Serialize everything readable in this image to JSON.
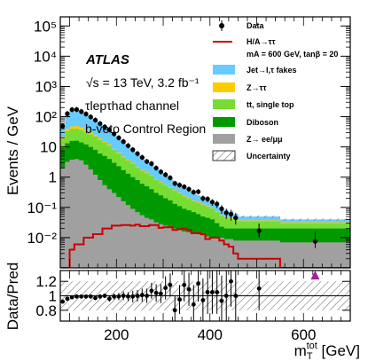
{
  "chart_data": [
    {
      "type": "area",
      "stacked": true,
      "log_y": true,
      "atlas_label": "ATLAS",
      "energy_label": "√s = 13 TeV, 3.2 fb⁻¹",
      "channel_label": "τlepτhad channel",
      "region_label": "b-veto Control Region",
      "ylabel": "Events / GeV",
      "xlim": [
        80,
        700
      ],
      "ylim": [
        0.001,
        200000
      ],
      "y_tick_labels": [
        "10⁻²",
        "10⁻¹",
        "1",
        "10",
        "10²",
        "10³",
        "10⁴",
        "10⁵"
      ],
      "y_tick_values": [
        0.01,
        0.1,
        1,
        10,
        100,
        1000,
        10000,
        100000
      ],
      "bin_edges": [
        80,
        90,
        100,
        110,
        120,
        130,
        140,
        150,
        160,
        170,
        180,
        190,
        200,
        210,
        220,
        230,
        240,
        250,
        260,
        270,
        280,
        290,
        300,
        310,
        320,
        330,
        340,
        350,
        360,
        370,
        380,
        390,
        400,
        410,
        420,
        430,
        440,
        450,
        460,
        550,
        700
      ],
      "series": [
        {
          "name": "Z→ee/μμ",
          "color": "#a0a0a0",
          "values": [
            2.0,
            3.2,
            3.8,
            4.0,
            3.6,
            2.6,
            1.8,
            1.2,
            0.8,
            0.55,
            0.4,
            0.3,
            0.22,
            0.16,
            0.12,
            0.09,
            0.07,
            0.055,
            0.045,
            0.04,
            0.032,
            0.028,
            0.025,
            0.022,
            0.02,
            0.018,
            0.016,
            0.015,
            0.014,
            0.013,
            0.012,
            0.011,
            0.01,
            0.01,
            0.01,
            0.009,
            0.009,
            0.008,
            0.008,
            0.007
          ]
        },
        {
          "name": "Diboson",
          "color": "#009900",
          "values": [
            6.0,
            10.0,
            12.0,
            12.0,
            10.4,
            9.4,
            8.2,
            6.8,
            5.2,
            4.45,
            3.6,
            2.7,
            2.08,
            1.54,
            1.18,
            0.91,
            0.73,
            0.545,
            0.455,
            0.36,
            0.268,
            0.222,
            0.175,
            0.148,
            0.11,
            0.092,
            0.074,
            0.065,
            0.056,
            0.047,
            0.038,
            0.034,
            0.03,
            0.02,
            0.013,
            0.011,
            0.011,
            0.012,
            0.012,
            0.013
          ]
        },
        {
          "name": "tt, single top",
          "color": "#77dd33",
          "values": [
            10.0,
            20.0,
            24.0,
            24.0,
            22.0,
            18.0,
            16.0,
            14.0,
            11.0,
            9.0,
            7.0,
            5.0,
            3.7,
            2.8,
            2.2,
            1.8,
            1.3,
            1.0,
            0.85,
            0.7,
            0.5,
            0.4,
            0.33,
            0.27,
            0.22,
            0.18,
            0.14,
            0.11,
            0.09,
            0.08,
            0.07,
            0.06,
            0.05,
            0.04,
            0.03,
            0.025,
            0.02,
            0.018,
            0.015,
            0.01
          ]
        },
        {
          "name": "Z→ττ",
          "color": "#ffcc00",
          "values": [
            3.0,
            6.0,
            8.0,
            9.0,
            8.0,
            6.0,
            4.0,
            3.0,
            2.0,
            1.4,
            1.0,
            0.7,
            0.5,
            0.35,
            0.25,
            0.18,
            0.13,
            0.1,
            0.08,
            0.06,
            0.045,
            0.035,
            0.028,
            0.022,
            0.018,
            0.015,
            0.012,
            0.01,
            0.008,
            0.007,
            0.006,
            0.005,
            0.004,
            0.004,
            0.003,
            0.003,
            0.003,
            0.002,
            0.002,
            0.002
          ]
        },
        {
          "name": "Jet→l,τ fakes",
          "color": "#66ccff",
          "values": [
            29.0,
            81.0,
            112.0,
            123.0,
            110.0,
            88.0,
            66.0,
            50.0,
            39.0,
            30.6,
            24.0,
            18.3,
            13.5,
            10.15,
            7.25,
            5.02,
            3.77,
            2.7,
            2.07,
            1.54,
            1.16,
            0.865,
            0.642,
            0.488,
            0.362,
            0.265,
            0.208,
            0.16,
            0.122,
            0.1,
            0.084,
            0.07,
            0.056,
            0.046,
            0.034,
            0.032,
            0.027,
            0.02,
            0.013,
            0.008
          ]
        }
      ],
      "signal": {
        "name": "H/A→ττ",
        "color": "#cc0000",
        "values": [
          0.001,
          0.001,
          0.004,
          0.006,
          0.006,
          0.01,
          0.01,
          0.013,
          0.013,
          0.02,
          0.02,
          0.025,
          0.025,
          0.026,
          0.026,
          0.025,
          0.027,
          0.024,
          0.024,
          0.026,
          0.026,
          0.021,
          0.022,
          0.022,
          0.018,
          0.019,
          0.02,
          0.018,
          0.014,
          0.014,
          0.013,
          0.009,
          0.01,
          0.01,
          0.008,
          0.006,
          0.005,
          0.003,
          0.002,
          0.001
        ]
      },
      "data_x": [
        85,
        95,
        105,
        115,
        125,
        135,
        145,
        155,
        165,
        175,
        185,
        195,
        205,
        215,
        225,
        235,
        245,
        255,
        265,
        275,
        285,
        295,
        305,
        315,
        325,
        335,
        345,
        355,
        365,
        375,
        385,
        395,
        405,
        415,
        425,
        435,
        445,
        455,
        505,
        625
      ],
      "data_y": [
        49,
        126,
        171,
        172,
        148,
        123,
        98,
        77,
        59,
        46,
        37,
        27,
        20,
        15,
        11,
        8.1,
        6.0,
        4.5,
        3.3,
        2.8,
        2.0,
        1.5,
        1.2,
        0.95,
        0.62,
        0.55,
        0.48,
        0.4,
        0.32,
        0.33,
        0.2,
        0.19,
        0.15,
        0.13,
        0.09,
        0.066,
        0.06,
        0.045,
        0.017,
        0.0075
      ],
      "legend": {
        "data": "Data",
        "signal": "H/A→ττ",
        "signal_params": "mA = 600 GeV, tanβ = 20",
        "fakes": "Jet→l,τ fakes",
        "ztautau": "Z→ττ",
        "top": "tt, single top",
        "diboson": "Diboson",
        "zll": "Z→ ee/μμ",
        "uncertainty": "Uncertainty",
        "placement": "top-right"
      }
    },
    {
      "type": "scatter",
      "ylabel": "Data/Pred",
      "xlabel": "m_T^tot [GeV]",
      "xlim": [
        80,
        700
      ],
      "ylim": [
        0.65,
        1.35
      ],
      "y_ticks": [
        0.8,
        1,
        1.2
      ],
      "y_tick_labels": [
        "0.8",
        "1",
        "1.2"
      ],
      "x_ticks": [
        200,
        400,
        600
      ],
      "x_tick_labels": [
        "200",
        "400",
        "600"
      ],
      "reference_line": 1,
      "uncertainty_band": [
        0.8,
        1.2
      ],
      "ratio_x": [
        85,
        95,
        105,
        115,
        125,
        135,
        145,
        155,
        165,
        175,
        185,
        195,
        205,
        215,
        225,
        235,
        245,
        255,
        265,
        275,
        285,
        295,
        305,
        315,
        325,
        335,
        345,
        355,
        365,
        375,
        385,
        395,
        405,
        415,
        425,
        435,
        445,
        455,
        505
      ],
      "ratio_y": [
        0.92,
        0.96,
        0.98,
        0.99,
        0.99,
        0.99,
        0.99,
        0.97,
        0.99,
        1.0,
        0.96,
        0.99,
        0.99,
        1.0,
        0.99,
        0.99,
        1.0,
        1.01,
        1.0,
        1.07,
        1.04,
        1.03,
        1.11,
        1.15,
        0.8,
        0.95,
        1.15,
        1.09,
        0.88,
        1.17,
        0.94,
        1.05,
        1.05,
        1.05,
        0.93,
        1.0,
        1.2,
        1.0,
        1.1
      ],
      "ratio_err": [
        0.02,
        0.02,
        0.02,
        0.02,
        0.02,
        0.02,
        0.02,
        0.03,
        0.03,
        0.03,
        0.04,
        0.04,
        0.05,
        0.06,
        0.06,
        0.08,
        0.08,
        0.09,
        0.1,
        0.11,
        0.12,
        0.13,
        0.16,
        0.16,
        0.2,
        0.2,
        0.23,
        0.23,
        0.27,
        0.25,
        0.3,
        0.3,
        0.3,
        0.3,
        0.35,
        0.35,
        0.35,
        0.35,
        0.3
      ],
      "offscale_marker": {
        "x": 625,
        "y": 1.3,
        "color": "#a020a0"
      }
    }
  ]
}
